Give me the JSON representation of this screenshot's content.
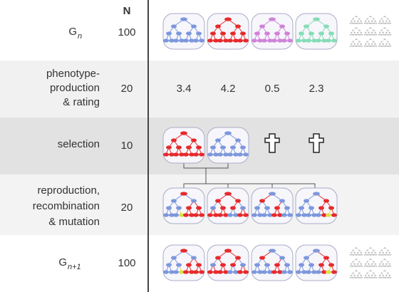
{
  "header": {
    "n_label": "N"
  },
  "rows": [
    {
      "label": {
        "main": "G",
        "sub": "n"
      },
      "n": 100
    },
    {
      "label_lines": [
        "phenotype-",
        "production",
        "& rating"
      ],
      "n": 20,
      "values": [
        3.4,
        4.2,
        0.5,
        2.3
      ]
    },
    {
      "label_lines": [
        "selection"
      ],
      "n": 10
    },
    {
      "label_lines": [
        "reproduction,",
        "recombination",
        "& mutation"
      ],
      "n": 20
    },
    {
      "label": {
        "main": "G",
        "sub": "n+1"
      },
      "n": 100
    }
  ]
}
